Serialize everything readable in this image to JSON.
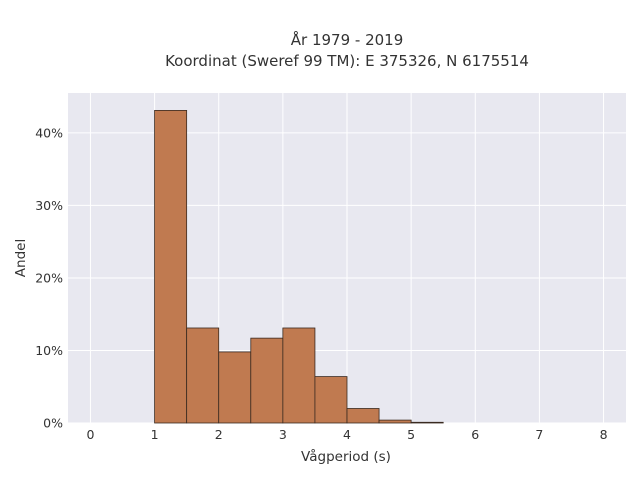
{
  "chart_data": {
    "type": "bar",
    "title_line1": "År 1979 - 2019",
    "title_line2": "Koordinat (Sweref 99 TM): E 375326, N 6175514",
    "xlabel": "Vågperiod (s)",
    "ylabel": "Andel",
    "xlim": [
      -0.35,
      8.35
    ],
    "ylim": [
      0,
      0.455
    ],
    "x_ticks": [
      0,
      1,
      2,
      3,
      4,
      5,
      6,
      7,
      8
    ],
    "x_tick_labels": [
      "0",
      "1",
      "2",
      "3",
      "4",
      "5",
      "6",
      "7",
      "8"
    ],
    "y_ticks": [
      0,
      0.1,
      0.2,
      0.3,
      0.4
    ],
    "y_tick_labels": [
      "0%",
      "10%",
      "20%",
      "30%",
      "40%"
    ],
    "grid": true,
    "bin_width": 0.5,
    "bins": [
      {
        "x0": 1.0,
        "x1": 1.5,
        "value": 0.431
      },
      {
        "x0": 1.5,
        "x1": 2.0,
        "value": 0.131
      },
      {
        "x0": 2.0,
        "x1": 2.5,
        "value": 0.098
      },
      {
        "x0": 2.5,
        "x1": 3.0,
        "value": 0.117
      },
      {
        "x0": 3.0,
        "x1": 3.5,
        "value": 0.131
      },
      {
        "x0": 3.5,
        "x1": 4.0,
        "value": 0.064
      },
      {
        "x0": 4.0,
        "x1": 4.5,
        "value": 0.02
      },
      {
        "x0": 4.5,
        "x1": 5.0,
        "value": 0.004
      },
      {
        "x0": 5.0,
        "x1": 5.5,
        "value": 0.001
      }
    ],
    "colors": {
      "bar_fill": "#c07a50",
      "bar_stroke": "#3a2a20",
      "plot_background": "#e8e8f0",
      "grid": "#ffffff"
    }
  }
}
